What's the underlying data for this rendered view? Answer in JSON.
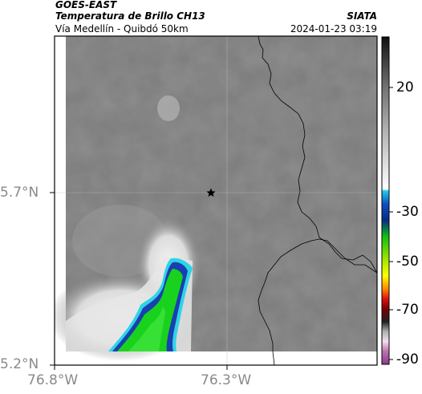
{
  "header": {
    "satellite": "GOES-EAST",
    "product": "Temperatura de Brillo CH13",
    "agency": "SIATA",
    "region": "Vía Medellín - Quibdó 50km",
    "datetime": "2024-01-23 03:19"
  },
  "axes": {
    "lat_ticks": [
      "5.7°N",
      "5.2°N"
    ],
    "lon_ticks": [
      "76.8°W",
      "76.3°W"
    ]
  },
  "colorbar": {
    "ticks": [
      "20",
      "-30",
      "-50",
      "-70",
      "-90"
    ]
  },
  "marker": {
    "icon": "star-icon"
  },
  "colors": {
    "cold_cloud_green": "#19d21e",
    "cold_cloud_blue": "#1a3fb0",
    "cold_cloud_cyan": "#2fd3e6",
    "background_gray": "#7f7f7f"
  }
}
